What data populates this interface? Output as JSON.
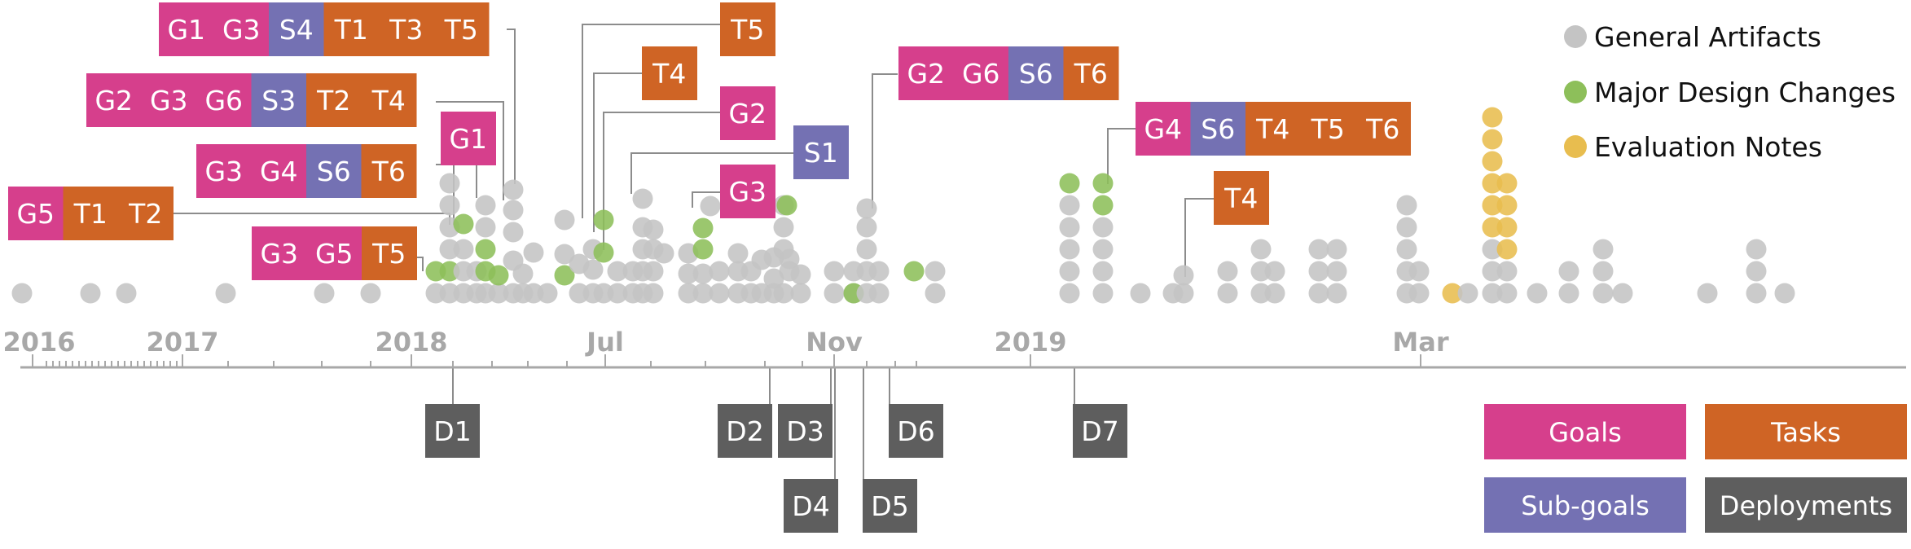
{
  "colors": {
    "goal": "#d63f8c",
    "subgoal": "#7471b3",
    "task": "#cf6425",
    "deployment": "#5e5e5e",
    "artifact": "#c4c4c4",
    "design": "#8dbf5a",
    "evaluation": "#e8bd4f",
    "axis": "#a8a8a8",
    "connector": "#8c8c8c"
  },
  "legend": {
    "general": "General Artifacts",
    "design": "Major Design Changes",
    "evaluation": "Evaluation Notes"
  },
  "key": {
    "goals": "Goals",
    "tasks": "Tasks",
    "subgoals": "Sub-goals",
    "deployments": "Deployments"
  },
  "axis_labels": [
    "2016",
    "2017",
    "2018",
    "Jul",
    "Nov",
    "2019",
    "Mar"
  ],
  "annotation_groups": [
    {
      "items": [
        {
          "t": "goal",
          "l": "G1"
        },
        {
          "t": "goal",
          "l": "G3"
        },
        {
          "t": "subgoal",
          "l": "S4"
        },
        {
          "t": "task",
          "l": "T1"
        },
        {
          "t": "task",
          "l": "T3"
        },
        {
          "t": "task",
          "l": "T5"
        }
      ]
    },
    {
      "items": [
        {
          "t": "goal",
          "l": "G2"
        },
        {
          "t": "goal",
          "l": "G3"
        },
        {
          "t": "goal",
          "l": "G6"
        },
        {
          "t": "subgoal",
          "l": "S3"
        },
        {
          "t": "task",
          "l": "T2"
        },
        {
          "t": "task",
          "l": "T4"
        }
      ]
    },
    {
      "items": [
        {
          "t": "goal",
          "l": "G1"
        }
      ]
    },
    {
      "items": [
        {
          "t": "goal",
          "l": "G3"
        },
        {
          "t": "goal",
          "l": "G4"
        },
        {
          "t": "subgoal",
          "l": "S6"
        },
        {
          "t": "task",
          "l": "T6"
        }
      ]
    },
    {
      "items": [
        {
          "t": "goal",
          "l": "G5"
        },
        {
          "t": "task",
          "l": "T1"
        },
        {
          "t": "task",
          "l": "T2"
        }
      ]
    },
    {
      "items": [
        {
          "t": "goal",
          "l": "G3"
        },
        {
          "t": "goal",
          "l": "G5"
        },
        {
          "t": "task",
          "l": "T5"
        }
      ]
    },
    {
      "items": [
        {
          "t": "task",
          "l": "T5"
        }
      ]
    },
    {
      "items": [
        {
          "t": "task",
          "l": "T4"
        }
      ]
    },
    {
      "items": [
        {
          "t": "goal",
          "l": "G2"
        }
      ]
    },
    {
      "items": [
        {
          "t": "subgoal",
          "l": "S1"
        }
      ]
    },
    {
      "items": [
        {
          "t": "goal",
          "l": "G3"
        }
      ]
    },
    {
      "items": [
        {
          "t": "goal",
          "l": "G2"
        },
        {
          "t": "goal",
          "l": "G6"
        },
        {
          "t": "subgoal",
          "l": "S6"
        },
        {
          "t": "task",
          "l": "T6"
        }
      ]
    },
    {
      "items": [
        {
          "t": "goal",
          "l": "G4"
        },
        {
          "t": "subgoal",
          "l": "S6"
        },
        {
          "t": "task",
          "l": "T4"
        },
        {
          "t": "task",
          "l": "T5"
        },
        {
          "t": "task",
          "l": "T6"
        }
      ]
    },
    {
      "items": [
        {
          "t": "task",
          "l": "T4"
        }
      ]
    }
  ],
  "deployments": [
    "D1",
    "D2",
    "D3",
    "D4",
    "D5",
    "D6",
    "D7"
  ]
}
